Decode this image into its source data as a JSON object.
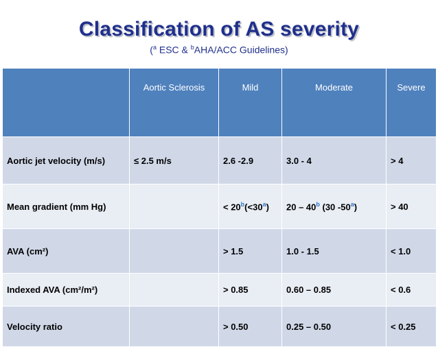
{
  "title": "Classification of AS severity",
  "subtitle": {
    "open": "(",
    "sup_a": "a",
    "esc": " ESC & ",
    "sup_b": "b",
    "aha": "AHA/ACC  Guidelines)"
  },
  "table": {
    "headers": [
      "",
      "Aortic Sclerosis",
      "Mild",
      "Moderate",
      "Severe"
    ],
    "rows": [
      {
        "label": "Aortic jet velocity (m/s)",
        "sclerosis": "≤ 2.5 m/s",
        "mild": "2.6 -2.9",
        "moderate": "3.0 - 4",
        "severe": "> 4"
      },
      {
        "label": "Mean gradient (mm Hg)",
        "sclerosis": "",
        "mild_a": "< 20",
        "mild_sup1": "b",
        "mild_b": "(<30",
        "mild_sup2": "a",
        "mild_c": ")",
        "mod_a": "20 – 40",
        "mod_sup1": "b",
        "mod_b": " (30 -50",
        "mod_sup2": "a",
        "mod_c": ")",
        "severe": "> 40"
      },
      {
        "label": "AVA (cm²)",
        "sclerosis": "",
        "mild": "> 1.5",
        "moderate": "1.0 - 1.5",
        "severe": "< 1.0"
      },
      {
        "label": "Indexed AVA (cm²/m²)",
        "sclerosis": "",
        "mild": "> 0.85",
        "moderate": "0.60 – 0.85",
        "severe": "< 0.6"
      },
      {
        "label": "Velocity ratio",
        "sclerosis": "",
        "mild": "> 0.50",
        "moderate": "0.25 – 0.50",
        "severe": "< 0.25"
      }
    ]
  },
  "colors": {
    "title": "#1f2f8c",
    "header_bg": "#4f81bd",
    "row_dark": "#d0d8e8",
    "row_light": "#e9edf4",
    "superscript": "#2f74c9"
  }
}
